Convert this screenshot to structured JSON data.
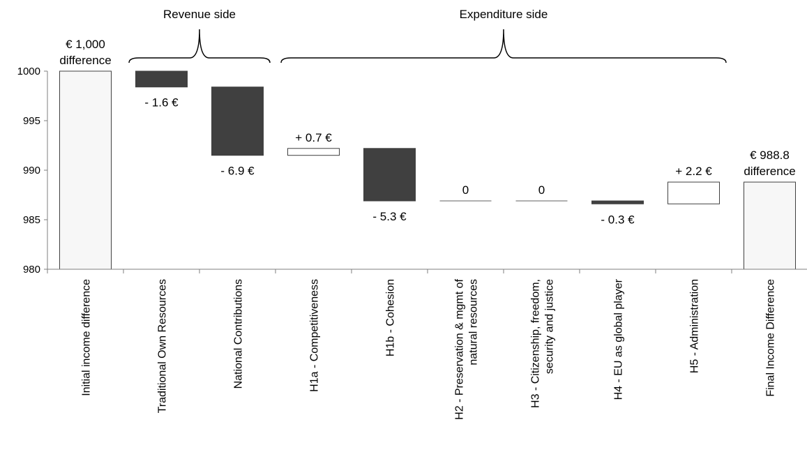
{
  "chart_data": {
    "type": "bar",
    "subtype": "waterfall",
    "title": "",
    "xlabel": "",
    "ylabel": "",
    "ylim": [
      980,
      1000
    ],
    "yticks": [
      980,
      985,
      990,
      995,
      1000
    ],
    "grid": false,
    "categories": [
      [
        "Initial income difference"
      ],
      [
        "Traditional Own Resources"
      ],
      [
        "National Contributions"
      ],
      [
        "H1a - Competitiveness"
      ],
      [
        "H1b - Cohesion"
      ],
      [
        "H2 - Preservation & mgmt of",
        "natural resources"
      ],
      [
        "H3 - Citizenship, freedom,",
        "security and justice"
      ],
      [
        "H4 - EU as global player"
      ],
      [
        "H5 - Administration"
      ],
      [
        "Final Income Difference"
      ]
    ],
    "bars": [
      {
        "kind": "total",
        "start": 0,
        "end": 1000,
        "label": [
          "€ 1,000",
          "difference"
        ],
        "label_pos": "above"
      },
      {
        "kind": "decrease",
        "start": 1000,
        "end": 998.4,
        "label": [
          "- 1.6 €"
        ],
        "label_pos": "below"
      },
      {
        "kind": "decrease",
        "start": 998.4,
        "end": 991.5,
        "label": [
          "- 6.9 €"
        ],
        "label_pos": "below"
      },
      {
        "kind": "increase",
        "start": 991.5,
        "end": 992.2,
        "label": [
          "+ 0.7 €"
        ],
        "label_pos": "above"
      },
      {
        "kind": "decrease",
        "start": 992.2,
        "end": 986.9,
        "label": [
          "- 5.3 €"
        ],
        "label_pos": "below"
      },
      {
        "kind": "zero",
        "start": 986.9,
        "end": 986.9,
        "label": [
          "0"
        ],
        "label_pos": "above"
      },
      {
        "kind": "zero",
        "start": 986.9,
        "end": 986.9,
        "label": [
          "0"
        ],
        "label_pos": "above"
      },
      {
        "kind": "decrease",
        "start": 986.9,
        "end": 986.6,
        "label": [
          "- 0.3 €"
        ],
        "label_pos": "below"
      },
      {
        "kind": "increase",
        "start": 986.6,
        "end": 988.8,
        "label": [
          "+ 2.2 €"
        ],
        "label_pos": "above"
      },
      {
        "kind": "total",
        "start": 0,
        "end": 988.8,
        "label": [
          "€ 988.8",
          "difference"
        ],
        "label_pos": "above"
      }
    ],
    "groups": [
      {
        "label": "Revenue side",
        "from": 1,
        "to": 2
      },
      {
        "label": "Expenditure side",
        "from": 3,
        "to": 8
      }
    ],
    "colors": {
      "decrease": "#404040",
      "increase": "#ffffff",
      "total": "#f7f7f7",
      "zero_line": "#808080",
      "edge": "#404040",
      "axis": "#7f7f7f",
      "brace": "#000000"
    }
  }
}
